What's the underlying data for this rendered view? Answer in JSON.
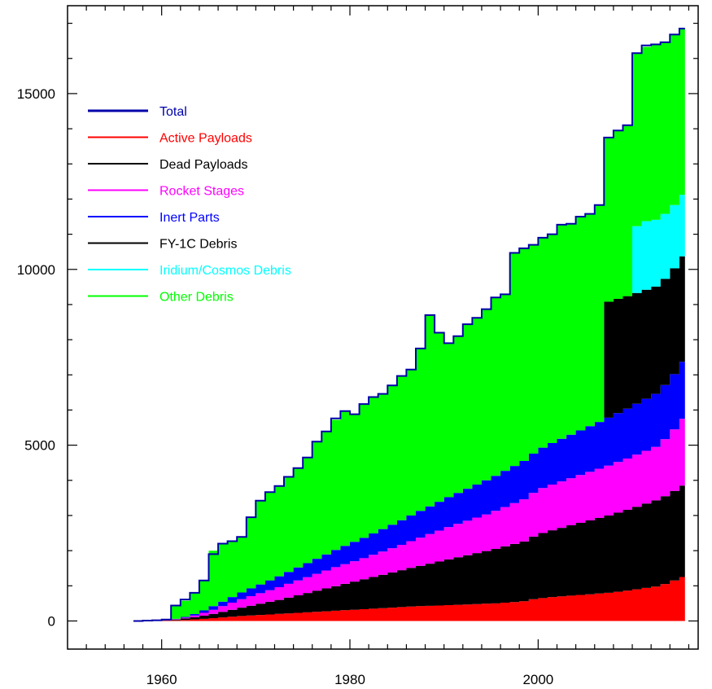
{
  "chart_data": {
    "type": "area",
    "title": "",
    "xlabel": "",
    "ylabel": "",
    "xlim": [
      1950,
      2017
    ],
    "ylim": [
      -800,
      17500
    ],
    "x_ticks": [
      1960,
      1980,
      2000
    ],
    "y_ticks": [
      0,
      5000,
      10000,
      15000
    ],
    "grid": false,
    "legend_position": "top-left",
    "x": [
      1957,
      1958,
      1959,
      1960,
      1961,
      1962,
      1963,
      1964,
      1965,
      1966,
      1967,
      1968,
      1969,
      1970,
      1971,
      1972,
      1973,
      1974,
      1975,
      1976,
      1977,
      1978,
      1979,
      1980,
      1981,
      1982,
      1983,
      1984,
      1985,
      1986,
      1987,
      1988,
      1989,
      1990,
      1991,
      1992,
      1993,
      1994,
      1995,
      1996,
      1997,
      1998,
      1999,
      2000,
      2001,
      2002,
      2003,
      2004,
      2005,
      2006,
      2007,
      2008,
      2009,
      2010,
      2011,
      2012,
      2013,
      2014,
      2015
    ],
    "series": [
      {
        "name": "Active Payloads",
        "color": "#ff0000",
        "values": [
          0,
          2,
          5,
          10,
          20,
          30,
          45,
          60,
          80,
          100,
          120,
          140,
          155,
          170,
          185,
          200,
          215,
          230,
          245,
          260,
          275,
          290,
          305,
          320,
          335,
          350,
          365,
          380,
          395,
          410,
          420,
          430,
          440,
          450,
          460,
          470,
          480,
          490,
          500,
          520,
          540,
          560,
          620,
          650,
          680,
          700,
          720,
          740,
          760,
          780,
          800,
          830,
          860,
          900,
          940,
          980,
          1050,
          1150,
          1250
        ]
      },
      {
        "name": "Dead Payloads",
        "color": "#000000",
        "values": [
          0,
          2,
          5,
          10,
          20,
          40,
          60,
          90,
          120,
          160,
          200,
          240,
          280,
          320,
          360,
          400,
          450,
          500,
          550,
          600,
          650,
          700,
          750,
          800,
          850,
          900,
          950,
          1000,
          1050,
          1100,
          1150,
          1200,
          1250,
          1300,
          1350,
          1400,
          1450,
          1500,
          1550,
          1600,
          1650,
          1700,
          1780,
          1850,
          1900,
          1950,
          2000,
          2050,
          2100,
          2150,
          2200,
          2250,
          2300,
          2350,
          2400,
          2450,
          2500,
          2550,
          2600
        ]
      },
      {
        "name": "Rocket Stages",
        "color": "#ff00ff",
        "values": [
          0,
          1,
          3,
          6,
          10,
          25,
          50,
          80,
          120,
          160,
          200,
          240,
          270,
          300,
          330,
          360,
          390,
          420,
          450,
          480,
          510,
          540,
          560,
          580,
          600,
          630,
          660,
          690,
          720,
          760,
          800,
          840,
          880,
          920,
          950,
          980,
          1010,
          1040,
          1080,
          1120,
          1160,
          1200,
          1240,
          1280,
          1300,
          1320,
          1340,
          1360,
          1380,
          1400,
          1420,
          1440,
          1460,
          1480,
          1500,
          1520,
          1620,
          1750,
          1900
        ]
      },
      {
        "name": "Inert Parts",
        "color": "#0000ff",
        "values": [
          0,
          1,
          2,
          4,
          10,
          20,
          40,
          70,
          100,
          130,
          160,
          190,
          220,
          250,
          280,
          310,
          340,
          370,
          400,
          430,
          460,
          490,
          520,
          550,
          580,
          610,
          640,
          670,
          700,
          730,
          760,
          790,
          820,
          850,
          880,
          910,
          940,
          970,
          1000,
          1030,
          1060,
          1090,
          1120,
          1150,
          1180,
          1210,
          1240,
          1270,
          1300,
          1330,
          1360,
          1390,
          1420,
          1450,
          1480,
          1510,
          1540,
          1570,
          1620
        ]
      },
      {
        "name": "FY-1C Debris",
        "color": "#000000",
        "values": [
          0,
          0,
          0,
          0,
          0,
          0,
          0,
          0,
          0,
          0,
          0,
          0,
          0,
          0,
          0,
          0,
          0,
          0,
          0,
          0,
          0,
          0,
          0,
          0,
          0,
          0,
          0,
          0,
          0,
          0,
          0,
          0,
          0,
          0,
          0,
          0,
          0,
          0,
          0,
          0,
          0,
          0,
          0,
          0,
          0,
          0,
          0,
          0,
          0,
          0,
          3300,
          3250,
          3200,
          3150,
          3100,
          3050,
          3020,
          3010,
          3000
        ]
      },
      {
        "name": "Iridium/Cosmos Debris",
        "color": "#00ffff",
        "values": [
          0,
          0,
          0,
          0,
          0,
          0,
          0,
          0,
          0,
          0,
          0,
          0,
          0,
          0,
          0,
          0,
          0,
          0,
          0,
          0,
          0,
          0,
          0,
          0,
          0,
          0,
          0,
          0,
          0,
          0,
          0,
          0,
          0,
          0,
          0,
          0,
          0,
          0,
          0,
          0,
          0,
          0,
          0,
          0,
          0,
          0,
          0,
          0,
          0,
          0,
          0,
          0,
          0,
          1900,
          1950,
          1900,
          1850,
          1800,
          1750
        ]
      },
      {
        "name": "Other Debris",
        "color": "#00ff00",
        "values": [
          0,
          4,
          5,
          10,
          380,
          460,
          605,
          850,
          1580,
          1650,
          1590,
          1580,
          2025,
          2380,
          2510,
          2570,
          2705,
          2830,
          3005,
          3330,
          3495,
          3700,
          3835,
          3630,
          3805,
          3880,
          3845,
          3960,
          4105,
          4150,
          4620,
          5440,
          4810,
          4380,
          4460,
          4680,
          4740,
          4870,
          5070,
          5020,
          6070,
          6050,
          5940,
          5970,
          5940,
          6090,
          6000,
          6080,
          6040,
          6170,
          4670,
          4790,
          4860,
          4920,
          4960,
          4990,
          4900,
          4870,
          4730
        ]
      },
      {
        "name": "Total",
        "color": "#0000aa",
        "values": [
          0,
          10,
          20,
          40,
          440,
          610,
          800,
          1150,
          1900,
          2200,
          2270,
          2390,
          2950,
          3420,
          3665,
          3840,
          4100,
          4350,
          4650,
          5100,
          5390,
          5760,
          5970,
          5880,
          6170,
          6370,
          6460,
          6700,
          6970,
          7150,
          7750,
          8700,
          8200,
          7900,
          8100,
          8440,
          8620,
          8870,
          9200,
          9290,
          10470,
          10600,
          10700,
          10900,
          11000,
          11270,
          11300,
          11500,
          11580,
          11830,
          13750,
          13950,
          14100,
          16150,
          16370,
          16400,
          16460,
          16680,
          16850
        ]
      }
    ]
  }
}
